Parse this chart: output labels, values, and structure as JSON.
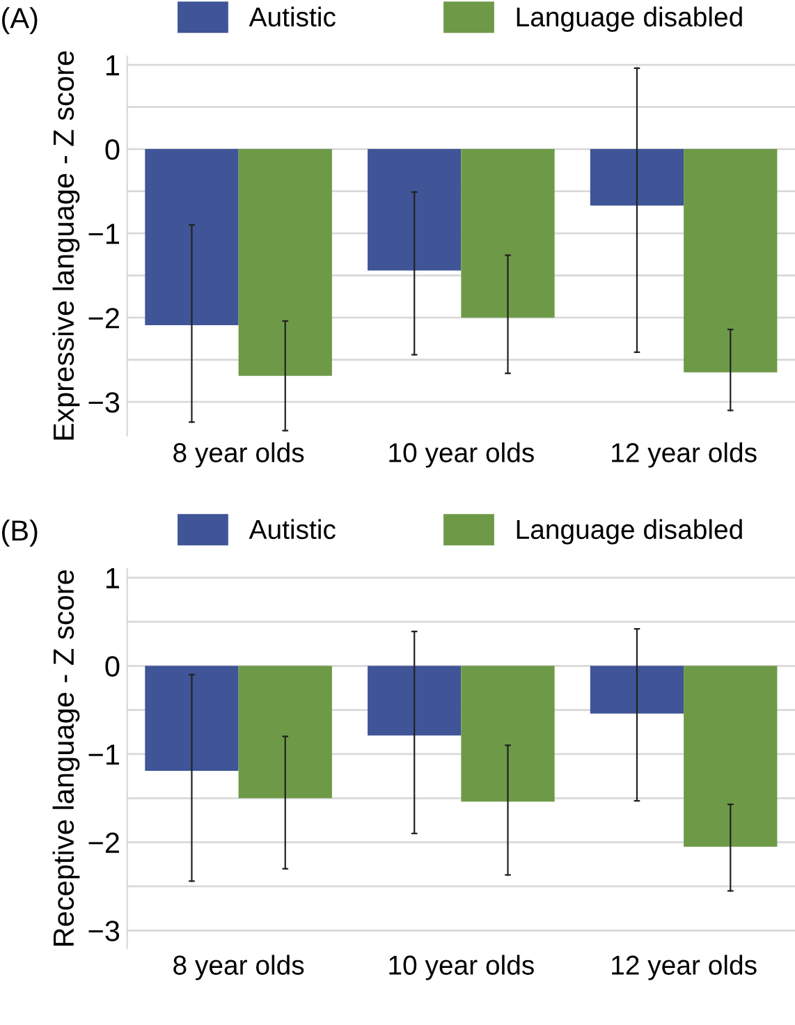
{
  "chart_data": [
    {
      "type": "bar",
      "annotations": [
        "(A)"
      ],
      "ylabel": "Expressive language - Z score",
      "categories": [
        "8 year olds",
        "10 year olds",
        "12 year olds"
      ],
      "series": [
        {
          "name": "Autistic",
          "color": "#3f5597",
          "values": [
            -2.09,
            -1.44,
            -0.67
          ],
          "errors": [
            [
              -3.24,
              -0.9
            ],
            [
              -2.44,
              -0.51
            ],
            [
              -2.41,
              0.96
            ]
          ]
        },
        {
          "name": "Language disabled",
          "color": "#6e9a48",
          "values": [
            -2.69,
            -2.0,
            -2.65
          ],
          "errors": [
            [
              -3.34,
              -2.04
            ],
            [
              -2.66,
              -1.26
            ],
            [
              -3.1,
              -2.14
            ]
          ]
        }
      ],
      "ylim": [
        -3.4,
        1.1
      ],
      "yticks": [
        -3,
        {
          "value": -2.5,
          "label": null
        },
        -2,
        {
          "value": -1.5,
          "label": null
        },
        -1,
        {
          "value": -0.5,
          "label": null
        },
        0,
        {
          "value": 0.5,
          "label": null
        },
        1
      ],
      "grid": "y",
      "legend": "top"
    },
    {
      "type": "bar",
      "annotations": [
        "(B)"
      ],
      "ylabel": "Receptive language - Z score",
      "categories": [
        "8 year olds",
        "10 year olds",
        "12 year olds"
      ],
      "series": [
        {
          "name": "Autistic",
          "color": "#3f5597",
          "values": [
            -1.19,
            -0.79,
            -0.54
          ],
          "errors": [
            [
              -2.44,
              -0.1
            ],
            [
              -1.9,
              0.39
            ],
            [
              -1.53,
              0.42
            ]
          ]
        },
        {
          "name": "Language disabled",
          "color": "#6e9a48",
          "values": [
            -1.5,
            -1.54,
            -2.05
          ],
          "errors": [
            [
              -2.3,
              -0.8
            ],
            [
              -2.37,
              -0.9
            ],
            [
              -2.55,
              -1.57
            ]
          ]
        }
      ],
      "ylim": [
        -3.2,
        1.1
      ],
      "yticks": [
        -3,
        {
          "value": -2.5,
          "label": null
        },
        -2,
        {
          "value": -1.5,
          "label": null
        },
        -1,
        {
          "value": -0.5,
          "label": null
        },
        0,
        {
          "value": 0.5,
          "label": null
        },
        1
      ],
      "grid": "y",
      "legend": "top"
    }
  ]
}
